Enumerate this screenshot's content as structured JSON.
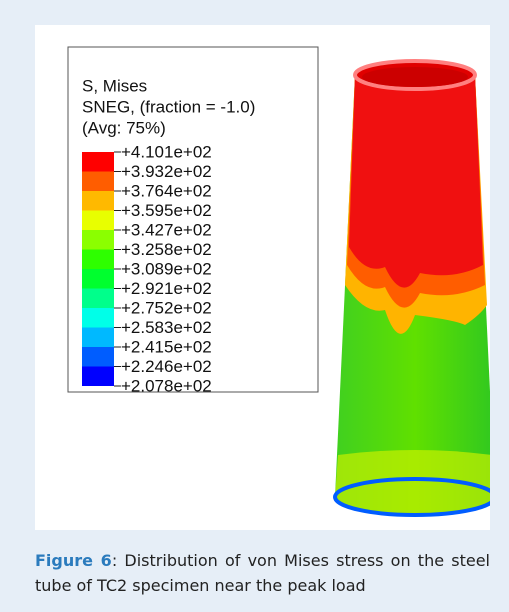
{
  "figure": {
    "legend": {
      "title_lines": [
        "S, Mises",
        "SNEG, (fraction = -1.0)",
        "(Avg: 75%)"
      ],
      "labels": [
        "+4.101e+02",
        "+3.932e+02",
        "+3.764e+02",
        "+3.595e+02",
        "+3.427e+02",
        "+3.258e+02",
        "+3.089e+02",
        "+2.921e+02",
        "+2.752e+02",
        "+2.583e+02",
        "+2.415e+02",
        "+2.246e+02",
        "+2.078e+02"
      ],
      "colors": [
        "#ff0000",
        "#ff5d00",
        "#ffb900",
        "#e8ff00",
        "#8bff00",
        "#2eff00",
        "#00ff2e",
        "#00ff8b",
        "#00ffe8",
        "#00b9ff",
        "#005dff",
        "#0000ff"
      ]
    },
    "caption": {
      "label": "Figure 6",
      "text": ": Distribution of von Mises stress on the steel tube of TC2 specimen near the peak load"
    }
  }
}
